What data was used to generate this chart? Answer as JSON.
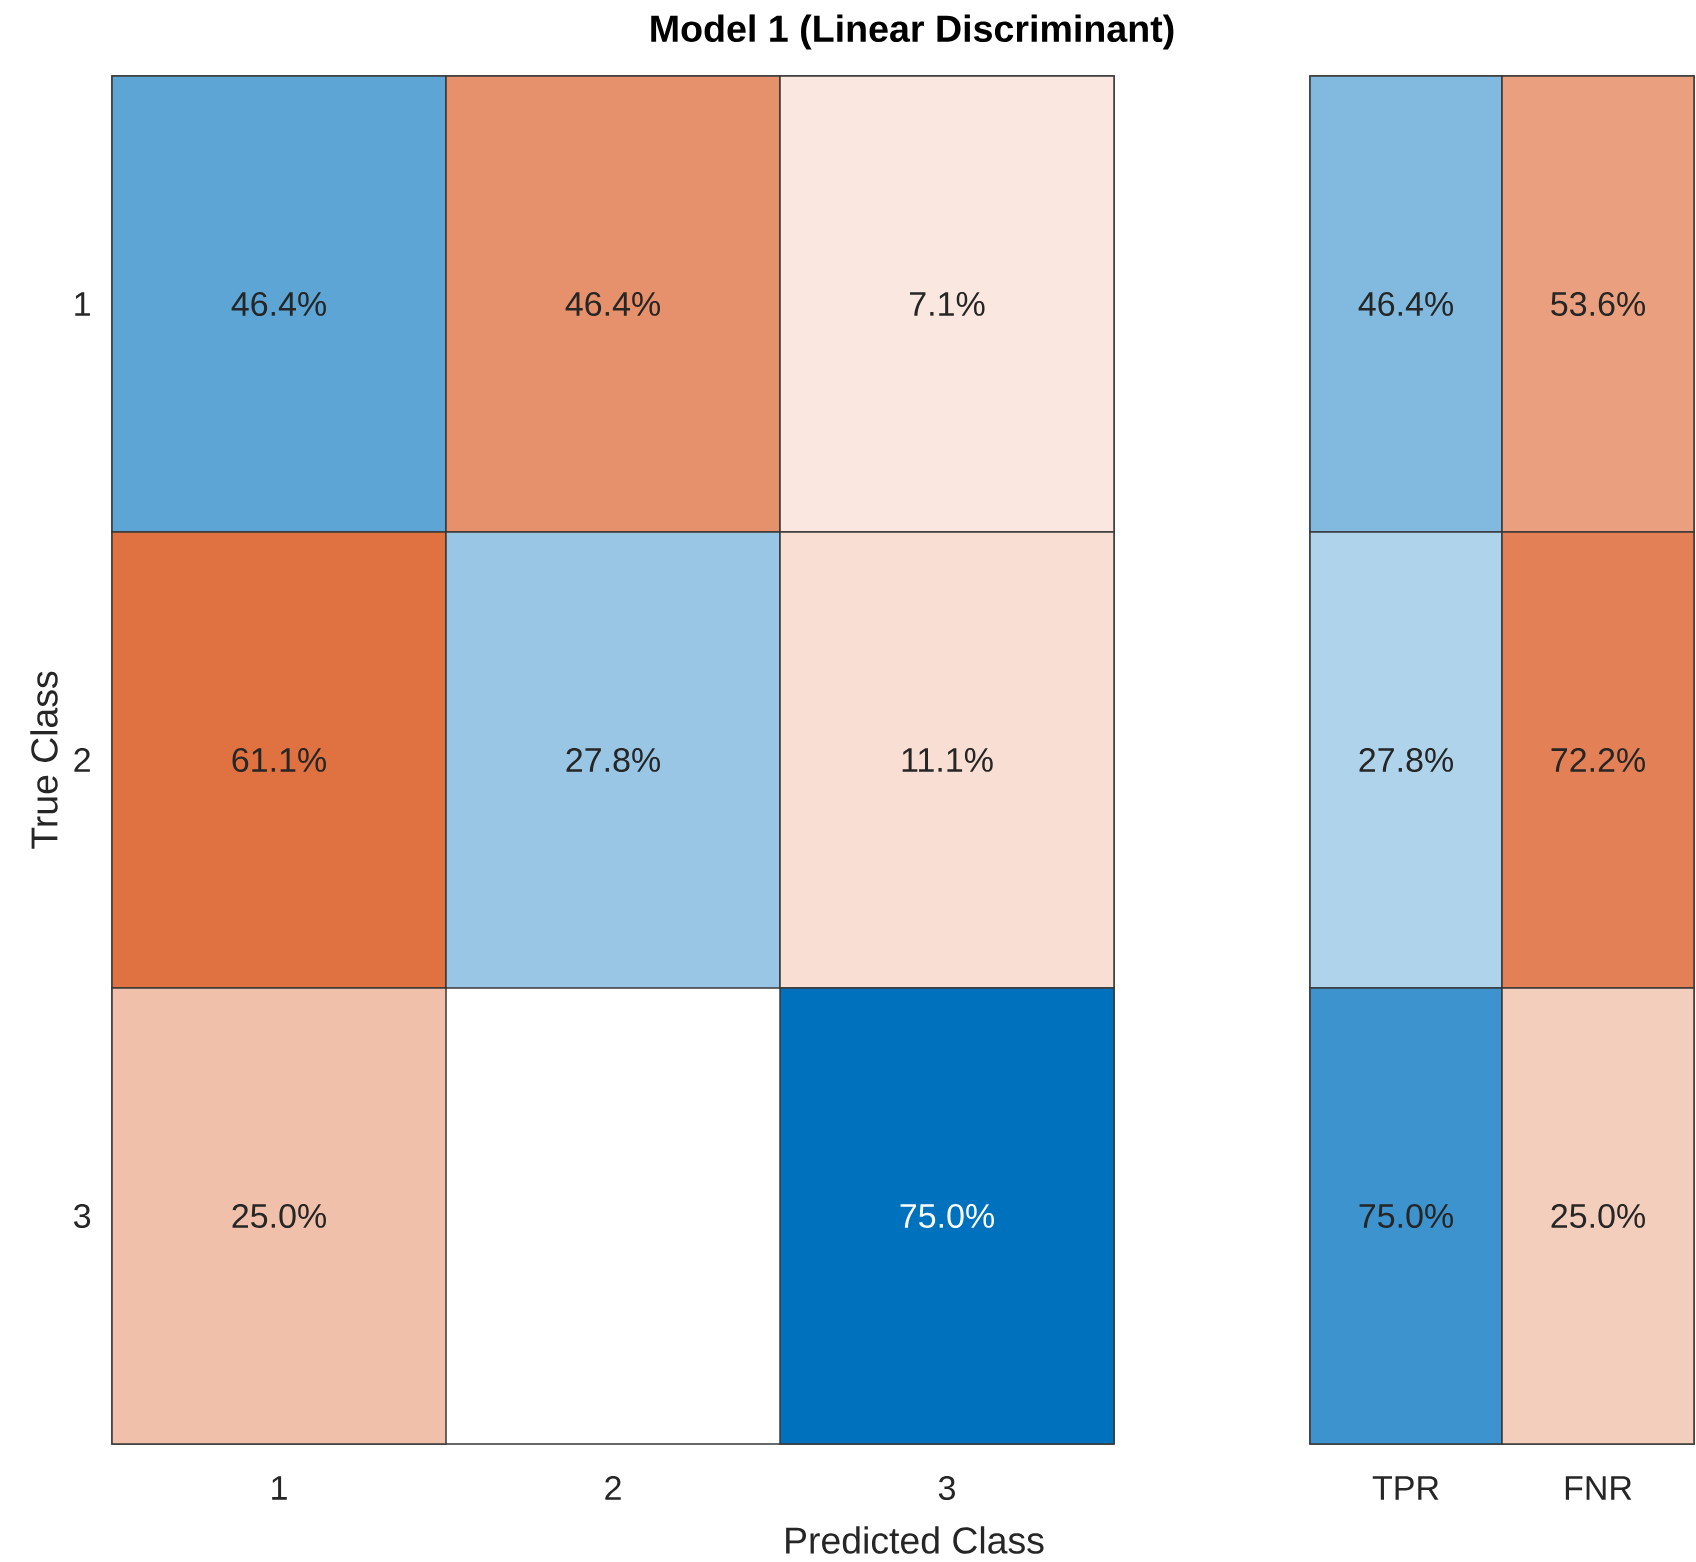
{
  "chart_data": [
    {
      "type": "heatmap",
      "title": "Model 1 (Linear Discriminant)",
      "xlabel": "Predicted Class",
      "ylabel": "True Class",
      "categories": [
        "1",
        "2",
        "3"
      ],
      "y_categories": [
        "1",
        "2",
        "3"
      ],
      "cells": [
        [
          46.4,
          46.4,
          7.1
        ],
        [
          61.1,
          27.8,
          11.1
        ],
        [
          25.0,
          null,
          75.0
        ]
      ],
      "cell_labels": [
        [
          "46.4%",
          "46.4%",
          "7.1%"
        ],
        [
          "61.1%",
          "27.8%",
          "11.1%"
        ],
        [
          "25.0%",
          null,
          "75.0%"
        ]
      ]
    },
    {
      "type": "heatmap",
      "categories": [
        "TPR",
        "FNR"
      ],
      "y_categories": [
        "1",
        "2",
        "3"
      ],
      "tick_labels": "x",
      "cells": [
        [
          46.4,
          53.6
        ],
        [
          27.8,
          72.2
        ],
        [
          75.0,
          25.0
        ]
      ],
      "cell_labels": [
        [
          "46.4%",
          "53.6%"
        ],
        [
          "27.8%",
          "72.2%"
        ],
        [
          "75.0%",
          "25.0%"
        ]
      ]
    }
  ]
}
